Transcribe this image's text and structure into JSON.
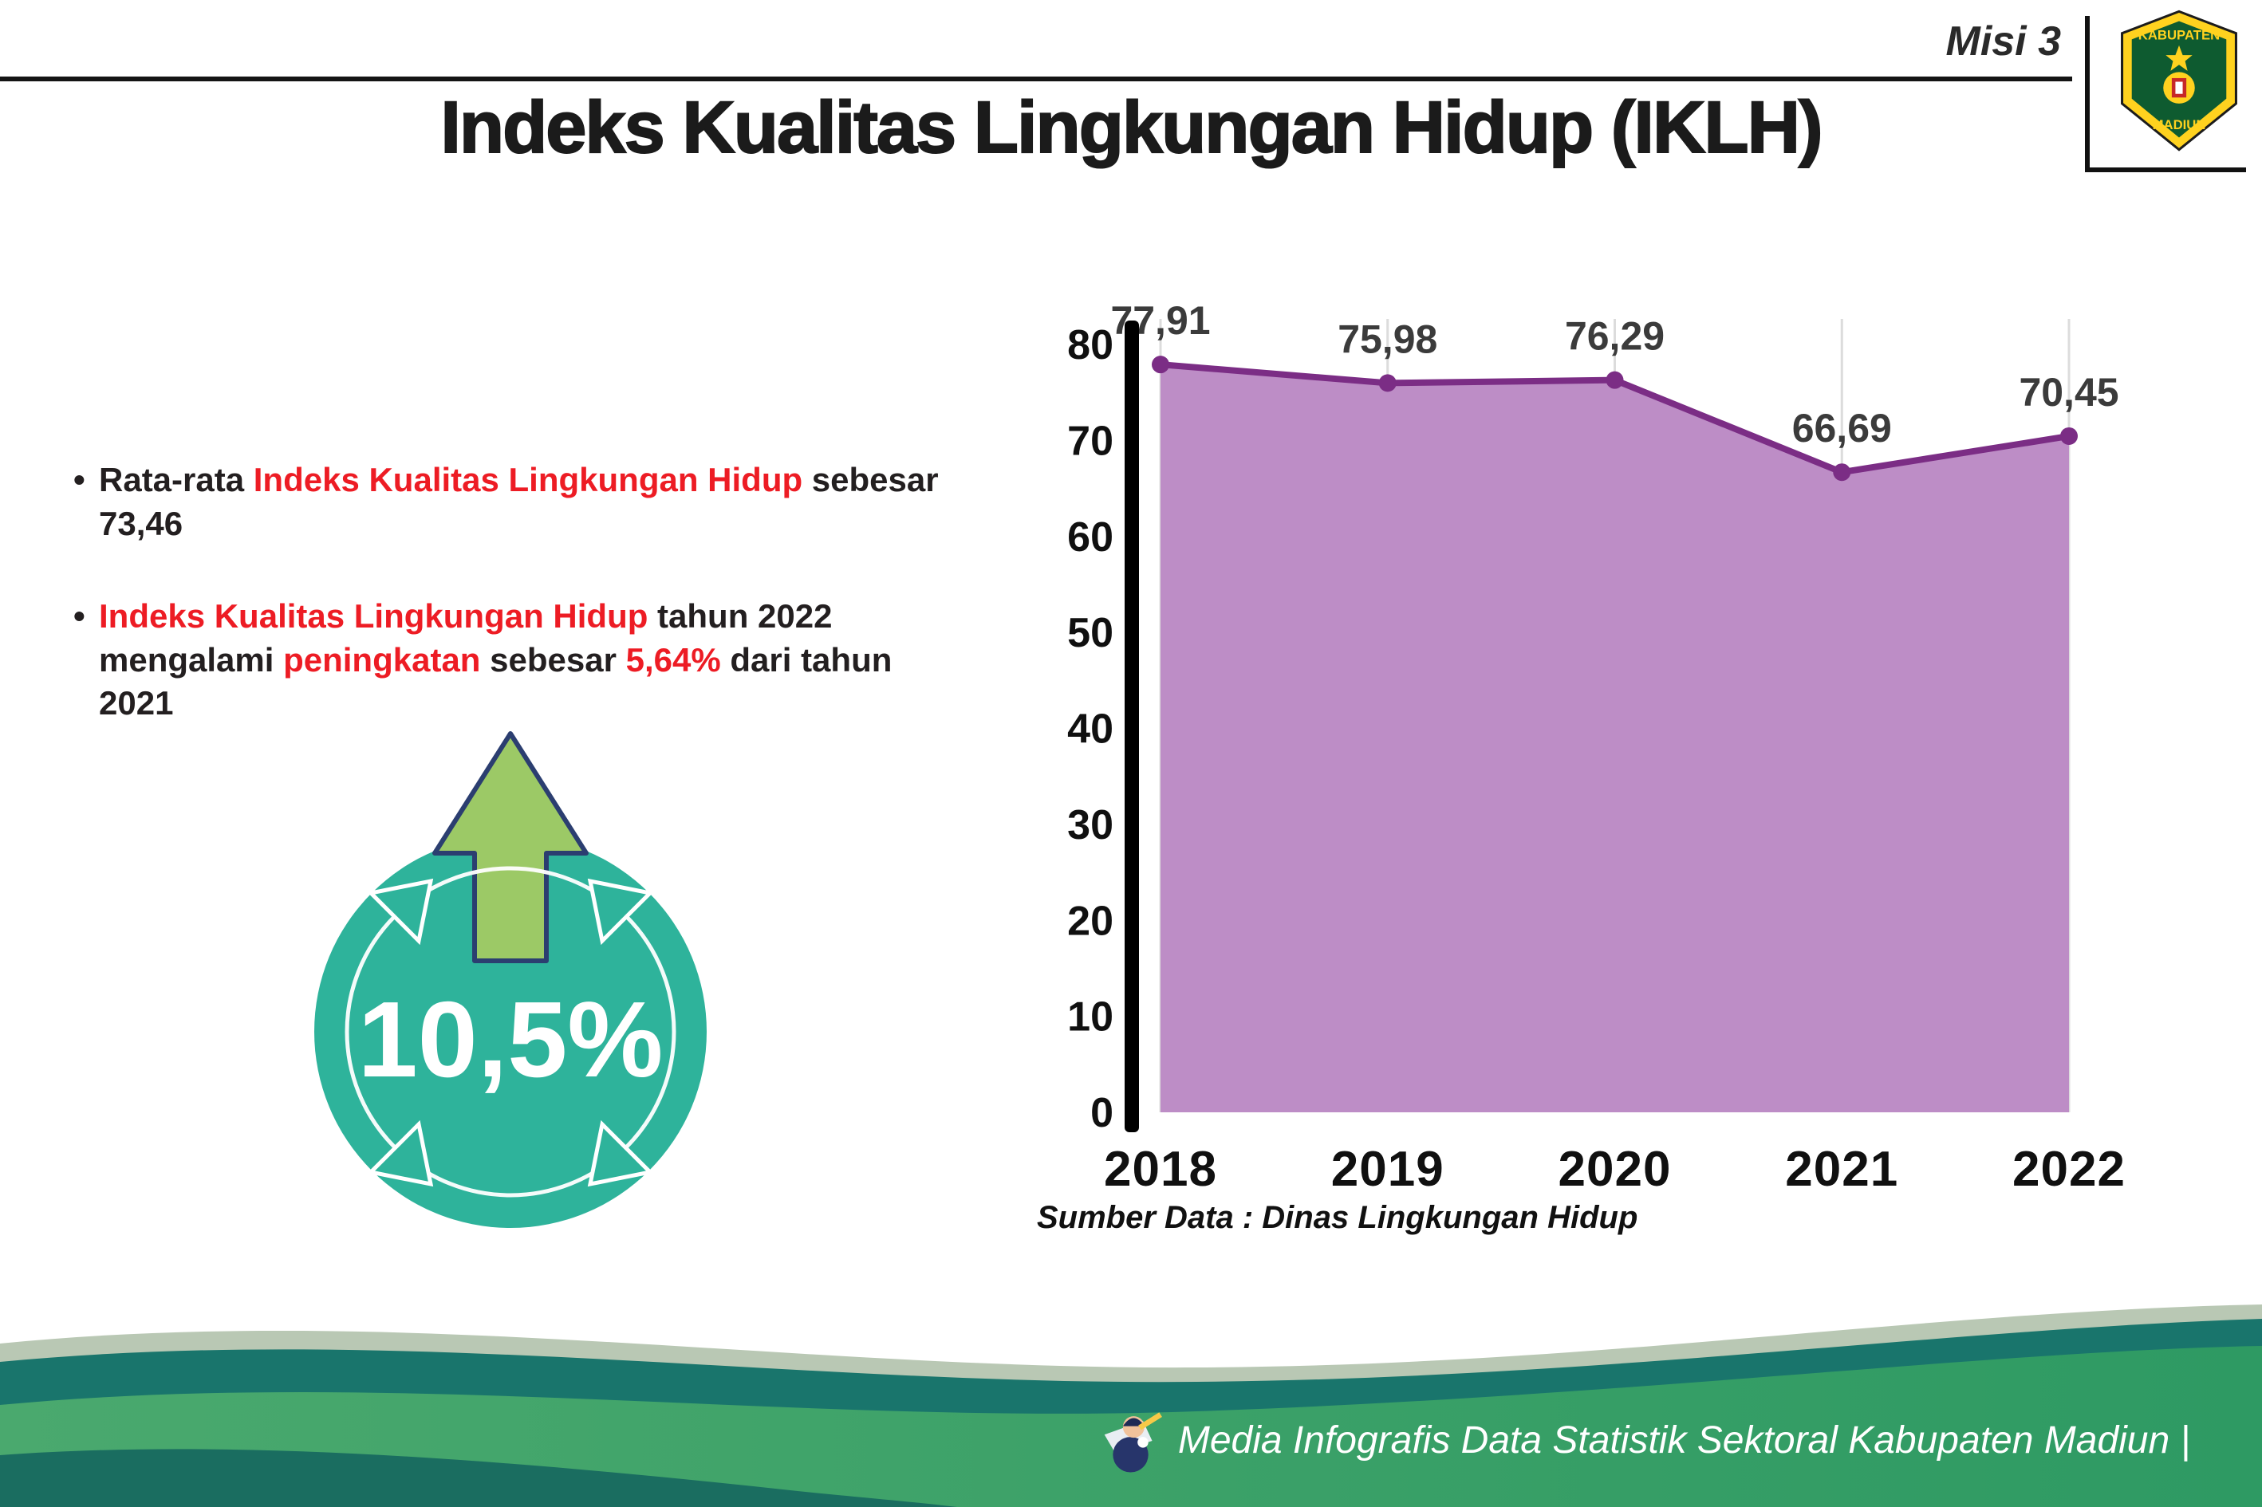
{
  "header": {
    "misi": "Misi 3",
    "title": "Indeks Kualitas Lingkungan Hidup (IKLH)",
    "logo": {
      "top": "KABUPATEN",
      "bottom": "MADIUN"
    }
  },
  "bullets": {
    "b1_s1": "Rata-rata ",
    "b1_s2": "Indeks Kualitas Lingkungan Hidup",
    "b1_s3": " sebesar 73,46",
    "b2_s1": "Indeks Kualitas Lingkungan Hidup",
    "b2_s2": " tahun 2022 mengalami ",
    "b2_s3": "peningkatan",
    "b2_s4": " sebesar ",
    "b2_s5": "5,64%",
    "b2_s6": " dari tahun 2021"
  },
  "badge": {
    "value": "10,5%"
  },
  "colors": {
    "accent_red": "#ed1c24",
    "badge_teal": "#2eb39b",
    "arrow_green": "#9cc966",
    "arrow_outline": "#2b3e70",
    "area_fill": "#bd8dc6",
    "line_purple": "#7b2d85"
  },
  "chart_data": {
    "type": "area",
    "title": "Indeks Kualitas Lingkungan Hidup (IKLH)",
    "categories": [
      "2018",
      "2019",
      "2020",
      "2021",
      "2022"
    ],
    "values": [
      77.91,
      75.98,
      76.29,
      66.69,
      70.45
    ],
    "point_labels": [
      "77,91",
      "75,98",
      "76,29",
      "66,69",
      "70,45"
    ],
    "ylim": [
      0,
      80
    ],
    "yticks": [
      0,
      10,
      20,
      30,
      40,
      50,
      60,
      70,
      80
    ],
    "grid": "light vertical gridlines per year",
    "legend": "none",
    "fill_color": "#bd8dc6",
    "line_color": "#7b2d85",
    "source": "Sumber Data : Dinas Lingkungan Hidup"
  },
  "footer": {
    "credit": "Media Infografis Data Statistik Sektoral Kabupaten Madiun |"
  }
}
